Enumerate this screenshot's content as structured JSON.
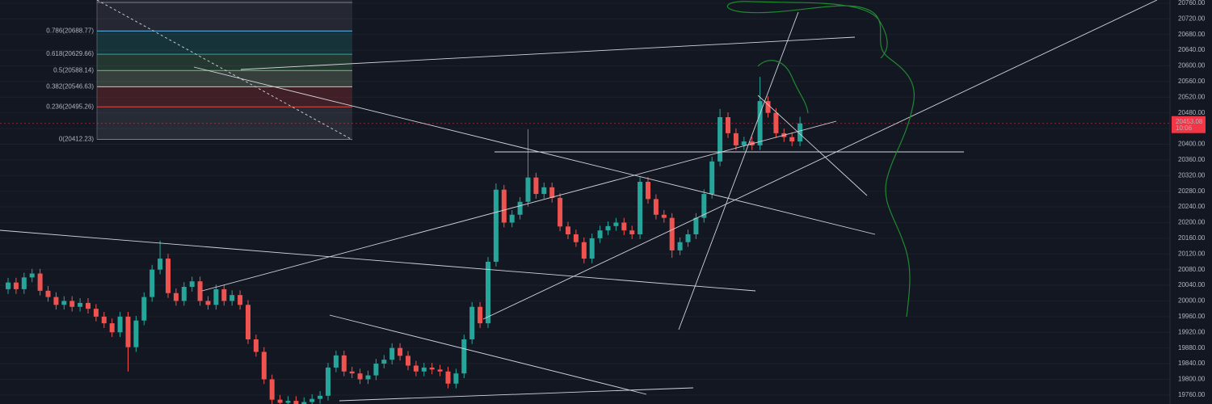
{
  "chart_data": {
    "type": "candlestick",
    "up_color": "#26a69a",
    "down_color": "#ef5350",
    "ylim": [
      19737,
      20768
    ],
    "yticks": [
      {
        "value": 19760,
        "label": "19760.00"
      },
      {
        "value": 19800,
        "label": "19800.00"
      },
      {
        "value": 19840,
        "label": "19840.00"
      },
      {
        "value": 19880,
        "label": "19880.00"
      },
      {
        "value": 19920,
        "label": "19920.00"
      },
      {
        "value": 19960,
        "label": "19960.00"
      },
      {
        "value": 20000,
        "label": "20000.00"
      },
      {
        "value": 20040,
        "label": "20040.00"
      },
      {
        "value": 20080,
        "label": "20080.00"
      },
      {
        "value": 20120,
        "label": "20120.00"
      },
      {
        "value": 20160,
        "label": "20160.00"
      },
      {
        "value": 20200,
        "label": "20200.00"
      },
      {
        "value": 20240,
        "label": "20240.00"
      },
      {
        "value": 20280,
        "label": "20280.00"
      },
      {
        "value": 20320,
        "label": "20320.00"
      },
      {
        "value": 20360,
        "label": "20360.00"
      },
      {
        "value": 20400,
        "label": "20400.00"
      },
      {
        "value": 20440,
        "label": "20440.00"
      },
      {
        "value": 20480,
        "label": "20480.00"
      },
      {
        "value": 20520,
        "label": "20520.00"
      },
      {
        "value": 20560,
        "label": "20560.00"
      },
      {
        "value": 20600,
        "label": "20600.00"
      },
      {
        "value": 20640,
        "label": "20640.00"
      },
      {
        "value": 20680,
        "label": "20680.00"
      },
      {
        "value": 20720,
        "label": "20720.00"
      },
      {
        "value": 20760,
        "label": "20760.00"
      }
    ],
    "grid": true,
    "last_price": 20453.08,
    "countdown": "10:06",
    "last_price_color": "#f23645",
    "fib_levels": [
      {
        "label": "0.786(20688.77)",
        "price": 20688.77,
        "color": "#64b5f6"
      },
      {
        "label": "0.618(20629.66)",
        "price": 20629.66,
        "color": "#26a69a"
      },
      {
        "label": "0.5(20588.14)",
        "price": 20588.14,
        "color": "#66bb6a"
      },
      {
        "label": "0.382(20546.63)",
        "price": 20546.63,
        "color": "#c5e1a5"
      },
      {
        "label": "0.236(20495.26)",
        "price": 20495.26,
        "color": "#f44336"
      },
      {
        "label": "0(20412.23)",
        "price": 20412.23,
        "color": "#787b86"
      }
    ],
    "open": [
      20030,
      20047,
      20030,
      20060,
      20070,
      20026,
      20010,
      19990,
      20000,
      19985,
      19995,
      19980,
      19960,
      19943,
      19920,
      19960,
      19882,
      19950,
      20010,
      20080,
      20108,
      20020,
      20000,
      20036,
      20050,
      20000,
      19990,
      20030,
      20000,
      20015,
      19990,
      19902,
      19870,
      19800,
      19748,
      19740,
      19745,
      19735,
      19742,
      19750,
      19758,
      19830,
      19861,
      19820,
      19815,
      19800,
      19810,
      19840,
      19850,
      19880,
      19860,
      19835,
      19820,
      19830,
      19825,
      19820,
      19789,
      19815,
      19902,
      19985,
      19943,
      20100,
      20284,
      20200,
      20220,
      20253,
      20315,
      20273,
      20290,
      20263,
      20190,
      20170,
      20150,
      20108,
      20160,
      20180,
      20191,
      20200,
      20180,
      20170,
      20304,
      20260,
      20220,
      20212,
      20129,
      20150,
      20170,
      20212,
      20273,
      20356,
      20469,
      20428,
      20397,
      20407,
      20397,
      20510,
      20480,
      20428,
      20418,
      20407
    ],
    "high": [
      20059,
      20059,
      20072,
      20082,
      20082,
      20038,
      20022,
      20012,
      20012,
      20007,
      20007,
      19992,
      19972,
      19955,
      19972,
      19972,
      19962,
      20022,
      20092,
      20154,
      20120,
      20032,
      20048,
      20062,
      20062,
      20012,
      20042,
      20042,
      20027,
      20027,
      20002,
      19914,
      19882,
      19812,
      19760,
      19757,
      19757,
      19754,
      19762,
      19770,
      19842,
      19873,
      19873,
      19832,
      19827,
      19822,
      19852,
      19862,
      19892,
      19892,
      19872,
      19847,
      19842,
      19842,
      19837,
      19832,
      19827,
      19914,
      19997,
      19997,
      20112,
      20300,
      20296,
      20232,
      20265,
      20438,
      20327,
      20302,
      20302,
      20275,
      20202,
      20182,
      20162,
      20172,
      20192,
      20203,
      20212,
      20212,
      20192,
      20316,
      20316,
      20272,
      20232,
      20224,
      20162,
      20182,
      20224,
      20285,
      20368,
      20490,
      20481,
      20440,
      20419,
      20419,
      20572,
      20522,
      20492,
      20440,
      20430,
      20470
    ],
    "low": [
      20018,
      20018,
      20018,
      20048,
      20014,
      19998,
      19978,
      19978,
      19973,
      19973,
      19968,
      19948,
      19931,
      19908,
      19908,
      19820,
      19870,
      19938,
      19998,
      20068,
      20008,
      19988,
      19988,
      20024,
      19988,
      19978,
      19978,
      19988,
      19988,
      19978,
      19890,
      19858,
      19788,
      19736,
      19728,
      19728,
      19723,
      19723,
      19730,
      19738,
      19746,
      19818,
      19808,
      19803,
      19788,
      19788,
      19798,
      19828,
      19838,
      19848,
      19823,
      19808,
      19808,
      19813,
      19808,
      19777,
      19777,
      19803,
      19890,
      19931,
      19931,
      20088,
      20188,
      20188,
      20208,
      20241,
      20261,
      20261,
      20251,
      20178,
      20158,
      20138,
      20096,
      20096,
      20148,
      20168,
      20179,
      20168,
      20158,
      20158,
      20248,
      20208,
      20200,
      20110,
      20117,
      20138,
      20158,
      20200,
      20261,
      20344,
      20416,
      20385,
      20385,
      20385,
      20385,
      20468,
      20416,
      20406,
      20395,
      20395
    ],
    "close": [
      20047,
      20030,
      20060,
      20070,
      20026,
      20010,
      19990,
      20000,
      19985,
      19995,
      19980,
      19960,
      19943,
      19920,
      19960,
      19882,
      19950,
      20010,
      20080,
      20108,
      20020,
      20000,
      20036,
      20050,
      20000,
      19990,
      20030,
      20000,
      20015,
      19990,
      19902,
      19870,
      19800,
      19748,
      19740,
      19745,
      19735,
      19742,
      19750,
      19758,
      19830,
      19861,
      19820,
      19815,
      19800,
      19810,
      19840,
      19850,
      19880,
      19860,
      19835,
      19820,
      19830,
      19825,
      19820,
      19789,
      19815,
      19902,
      19985,
      19943,
      20100,
      20284,
      20200,
      20220,
      20253,
      20315,
      20273,
      20290,
      20263,
      20190,
      20170,
      20150,
      20108,
      20160,
      20180,
      20191,
      20200,
      20180,
      20170,
      20304,
      20260,
      20220,
      20212,
      20129,
      20150,
      20170,
      20212,
      20273,
      20356,
      20469,
      20428,
      20397,
      20407,
      20397,
      20510,
      20480,
      20428,
      20418,
      20407,
      20453
    ]
  }
}
